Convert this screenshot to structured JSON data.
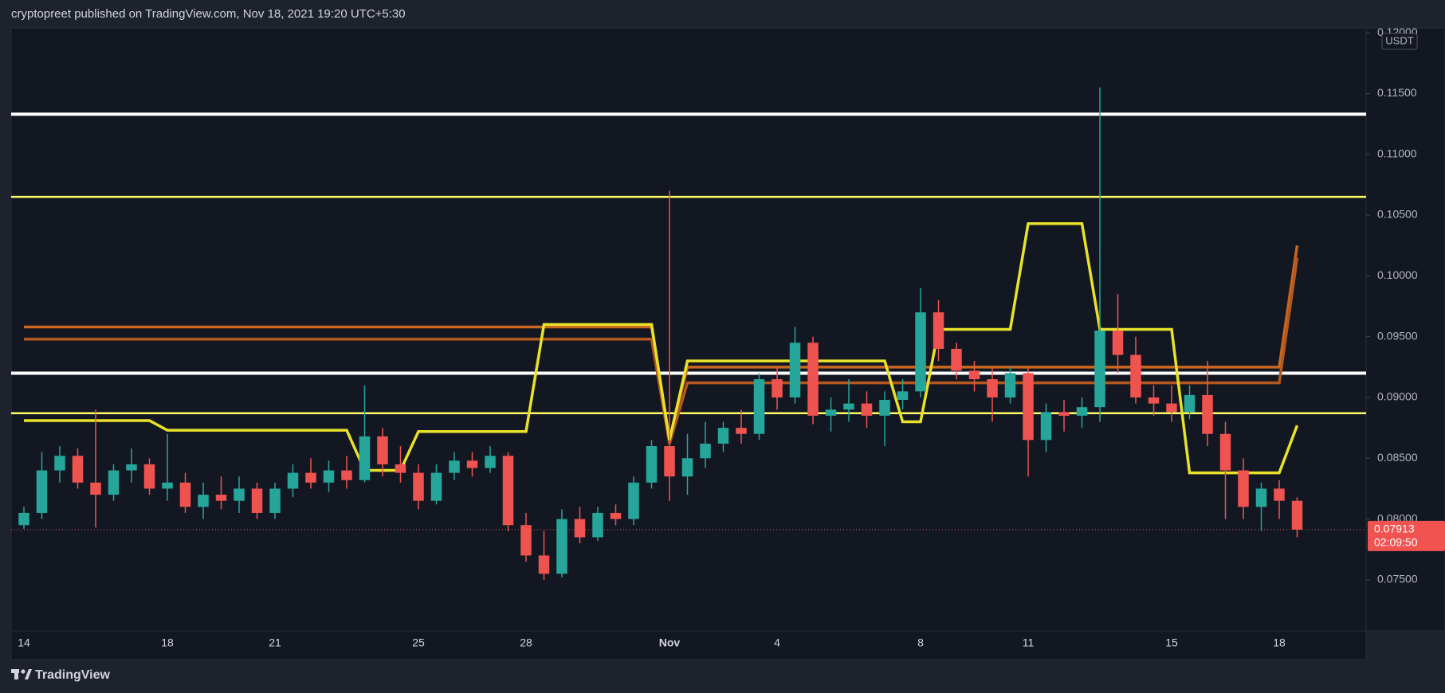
{
  "header": "cryptopreet published on TradingView.com, Nov 18, 2021 19:20 UTC+5:30",
  "brand": "TradingView",
  "chart_data": {
    "type": "candlestick",
    "currency": "USDT",
    "countdown": "02:09:50",
    "up_color": "#26a69a",
    "down_color": "#ef5350",
    "ylim": [
      0.0708,
      0.1204
    ],
    "yticks": [
      {
        "value": 0.075,
        "label": "0.07500"
      },
      {
        "value": 0.08,
        "label": "0.08000"
      },
      {
        "value": 0.085,
        "label": "0.08500"
      },
      {
        "value": 0.09,
        "label": "0.09000"
      },
      {
        "value": 0.095,
        "label": "0.09500"
      },
      {
        "value": 0.1,
        "label": "0.10000"
      },
      {
        "value": 0.105,
        "label": "0.10500"
      },
      {
        "value": 0.11,
        "label": "0.11000"
      },
      {
        "value": 0.115,
        "label": "0.11500"
      },
      {
        "value": 0.12,
        "label": "0.12000"
      }
    ],
    "categories": [
      "14",
      null,
      null,
      null,
      null,
      null,
      null,
      null,
      "18",
      null,
      null,
      null,
      null,
      null,
      "21",
      null,
      null,
      null,
      null,
      null,
      null,
      null,
      "25",
      null,
      null,
      null,
      null,
      null,
      "28",
      null,
      null,
      null,
      null,
      null,
      null,
      null,
      "Nov",
      null,
      null,
      null,
      null,
      null,
      "4",
      null,
      null,
      null,
      null,
      null,
      null,
      null,
      "8",
      null,
      null,
      null,
      null,
      null,
      "11",
      null,
      null,
      null,
      null,
      null,
      null,
      null,
      "15",
      null,
      null,
      null,
      null,
      null,
      "18",
      null
    ],
    "open": [
      0.0795,
      0.0805,
      0.084,
      0.0852,
      0.083,
      0.082,
      0.084,
      0.0845,
      0.0825,
      0.083,
      0.081,
      0.082,
      0.0815,
      0.0825,
      0.0805,
      0.0825,
      0.0838,
      0.083,
      0.084,
      0.0832,
      0.0868,
      0.0845,
      0.0838,
      0.0815,
      0.0838,
      0.0848,
      0.0842,
      0.0852,
      0.0795,
      0.077,
      0.0755,
      0.08,
      0.0785,
      0.0805,
      0.08,
      0.083,
      0.086,
      0.0835,
      0.085,
      0.0862,
      0.0875,
      0.087,
      0.0915,
      0.09,
      0.0945,
      0.0885,
      0.089,
      0.0895,
      0.0885,
      0.0898,
      0.0905,
      0.097,
      0.094,
      0.0922,
      0.0915,
      0.09,
      0.092,
      0.0865,
      0.0888,
      0.0885,
      0.0892,
      0.0955,
      0.0935,
      0.09,
      0.0895,
      0.0888,
      0.0902,
      0.087,
      0.084,
      0.081,
      0.0825,
      0.0815
    ],
    "high": [
      0.081,
      0.0855,
      0.086,
      0.0858,
      0.089,
      0.0845,
      0.0858,
      0.085,
      0.087,
      0.0838,
      0.083,
      0.0835,
      0.0835,
      0.083,
      0.083,
      0.0845,
      0.085,
      0.0848,
      0.0852,
      0.091,
      0.0875,
      0.086,
      0.0845,
      0.0845,
      0.0855,
      0.0855,
      0.086,
      0.0855,
      0.0805,
      0.079,
      0.0808,
      0.081,
      0.081,
      0.0812,
      0.0835,
      0.0865,
      0.107,
      0.087,
      0.088,
      0.088,
      0.089,
      0.092,
      0.0925,
      0.0958,
      0.095,
      0.09,
      0.0915,
      0.0905,
      0.0905,
      0.0915,
      0.099,
      0.098,
      0.0945,
      0.093,
      0.0925,
      0.0925,
      0.0925,
      0.0895,
      0.0898,
      0.09,
      0.1155,
      0.0985,
      0.095,
      0.091,
      0.091,
      0.091,
      0.093,
      0.088,
      0.085,
      0.083,
      0.0832,
      0.0818
    ],
    "low": [
      0.0792,
      0.08,
      0.083,
      0.0825,
      0.0793,
      0.0815,
      0.083,
      0.082,
      0.0815,
      0.0805,
      0.08,
      0.0808,
      0.0805,
      0.08,
      0.08,
      0.0818,
      0.0825,
      0.0822,
      0.0825,
      0.083,
      0.0835,
      0.083,
      0.0808,
      0.0812,
      0.0832,
      0.0835,
      0.0838,
      0.079,
      0.0765,
      0.075,
      0.0752,
      0.078,
      0.0782,
      0.0795,
      0.0795,
      0.0825,
      0.0815,
      0.082,
      0.0842,
      0.0855,
      0.0862,
      0.0865,
      0.089,
      0.0895,
      0.0878,
      0.0872,
      0.088,
      0.0875,
      0.086,
      0.089,
      0.09,
      0.093,
      0.0915,
      0.0905,
      0.088,
      0.0895,
      0.0835,
      0.0855,
      0.0872,
      0.0875,
      0.088,
      0.092,
      0.0895,
      0.0885,
      0.088,
      0.0882,
      0.086,
      0.08,
      0.08,
      0.079,
      0.08,
      0.0785
    ],
    "close": [
      0.0805,
      0.084,
      0.0852,
      0.083,
      0.082,
      0.084,
      0.0845,
      0.0825,
      0.083,
      0.081,
      0.082,
      0.0815,
      0.0825,
      0.0805,
      0.0825,
      0.0838,
      0.083,
      0.084,
      0.0832,
      0.0868,
      0.0845,
      0.0838,
      0.0815,
      0.0838,
      0.0848,
      0.0842,
      0.0852,
      0.0795,
      0.077,
      0.0755,
      0.08,
      0.0785,
      0.0805,
      0.08,
      0.083,
      0.086,
      0.0835,
      0.085,
      0.0862,
      0.0875,
      0.087,
      0.0915,
      0.09,
      0.0945,
      0.0885,
      0.089,
      0.0895,
      0.0885,
      0.0898,
      0.0905,
      0.097,
      0.094,
      0.0922,
      0.0915,
      0.09,
      0.092,
      0.0865,
      0.0888,
      0.0885,
      0.0892,
      0.0955,
      0.0935,
      0.09,
      0.0895,
      0.0888,
      0.0902,
      0.087,
      0.084,
      0.081,
      0.0825,
      0.0815,
      0.07913
    ],
    "levels": [
      {
        "value": 0.1133,
        "color": "#ffffff"
      },
      {
        "value": 0.092,
        "color": "#ffffff"
      },
      {
        "value": 0.1065,
        "color": "#ffff66"
      },
      {
        "value": 0.0887,
        "color": "#ffff66"
      }
    ],
    "overlays": [
      {
        "color": "#c9671e",
        "values": [
          0.0958,
          0.0958,
          0.0958,
          0.0958,
          0.0958,
          0.0958,
          0.0958,
          0.0958,
          0.0958,
          0.0958,
          0.0958,
          0.0958,
          0.0958,
          0.0958,
          0.0958,
          0.0958,
          0.0958,
          0.0958,
          0.0958,
          0.0958,
          0.0958,
          0.0958,
          0.0958,
          0.0958,
          0.0958,
          0.0958,
          0.0958,
          0.0958,
          0.0958,
          0.0958,
          0.0958,
          0.0958,
          0.0958,
          0.0958,
          0.0958,
          0.0958,
          0.0865,
          0.0925,
          0.0925,
          0.0925,
          0.0925,
          0.0925,
          0.0925,
          0.0925,
          0.0925,
          0.0925,
          0.0925,
          0.0925,
          0.0925,
          0.0925,
          0.0925,
          0.0925,
          0.0925,
          0.0925,
          0.0925,
          0.0925,
          0.0925,
          0.0925,
          0.0925,
          0.0925,
          0.0925,
          0.0925,
          0.0925,
          0.0925,
          0.0925,
          0.0925,
          0.0925,
          0.0925,
          0.0925,
          0.0925,
          0.0925,
          0.1025
        ]
      },
      {
        "color": "#b4581f",
        "values": [
          0.0948,
          0.0948,
          0.0948,
          0.0948,
          0.0948,
          0.0948,
          0.0948,
          0.0948,
          0.0948,
          0.0948,
          0.0948,
          0.0948,
          0.0948,
          0.0948,
          0.0948,
          0.0948,
          0.0948,
          0.0948,
          0.0948,
          0.0948,
          0.0948,
          0.0948,
          0.0948,
          0.0948,
          0.0948,
          0.0948,
          0.0948,
          0.0948,
          0.0948,
          0.0948,
          0.0948,
          0.0948,
          0.0948,
          0.0948,
          0.0948,
          0.0948,
          0.0862,
          0.0912,
          0.0912,
          0.0912,
          0.0912,
          0.0912,
          0.0912,
          0.0912,
          0.0912,
          0.0912,
          0.0912,
          0.0912,
          0.0912,
          0.0912,
          0.0912,
          0.0912,
          0.0912,
          0.0912,
          0.0912,
          0.0912,
          0.0912,
          0.0912,
          0.0912,
          0.0912,
          0.0912,
          0.0912,
          0.0912,
          0.0912,
          0.0912,
          0.0912,
          0.0912,
          0.0912,
          0.0912,
          0.0912,
          0.0912,
          0.1015
        ]
      },
      {
        "color": "#e8e22a",
        "values": [
          0.0881,
          0.0881,
          0.0881,
          0.0881,
          0.0881,
          0.0881,
          0.0881,
          0.0881,
          0.0873,
          0.0873,
          0.0873,
          0.0873,
          0.0873,
          0.0873,
          0.0873,
          0.0873,
          0.0873,
          0.0873,
          0.0873,
          0.084,
          0.084,
          0.084,
          0.0872,
          0.0872,
          0.0872,
          0.0872,
          0.0872,
          0.0872,
          0.0872,
          0.096,
          0.096,
          0.096,
          0.096,
          0.096,
          0.096,
          0.096,
          0.0865,
          0.093,
          0.093,
          0.093,
          0.093,
          0.093,
          0.093,
          0.093,
          0.093,
          0.093,
          0.093,
          0.093,
          0.093,
          0.088,
          0.088,
          0.0956,
          0.0956,
          0.0956,
          0.0956,
          0.0956,
          0.1043,
          0.1043,
          0.1043,
          0.1043,
          0.0956,
          0.0956,
          0.0956,
          0.0956,
          0.0956,
          0.0838,
          0.0838,
          0.0838,
          0.0838,
          0.0838,
          0.0838,
          0.0877
        ]
      }
    ]
  }
}
